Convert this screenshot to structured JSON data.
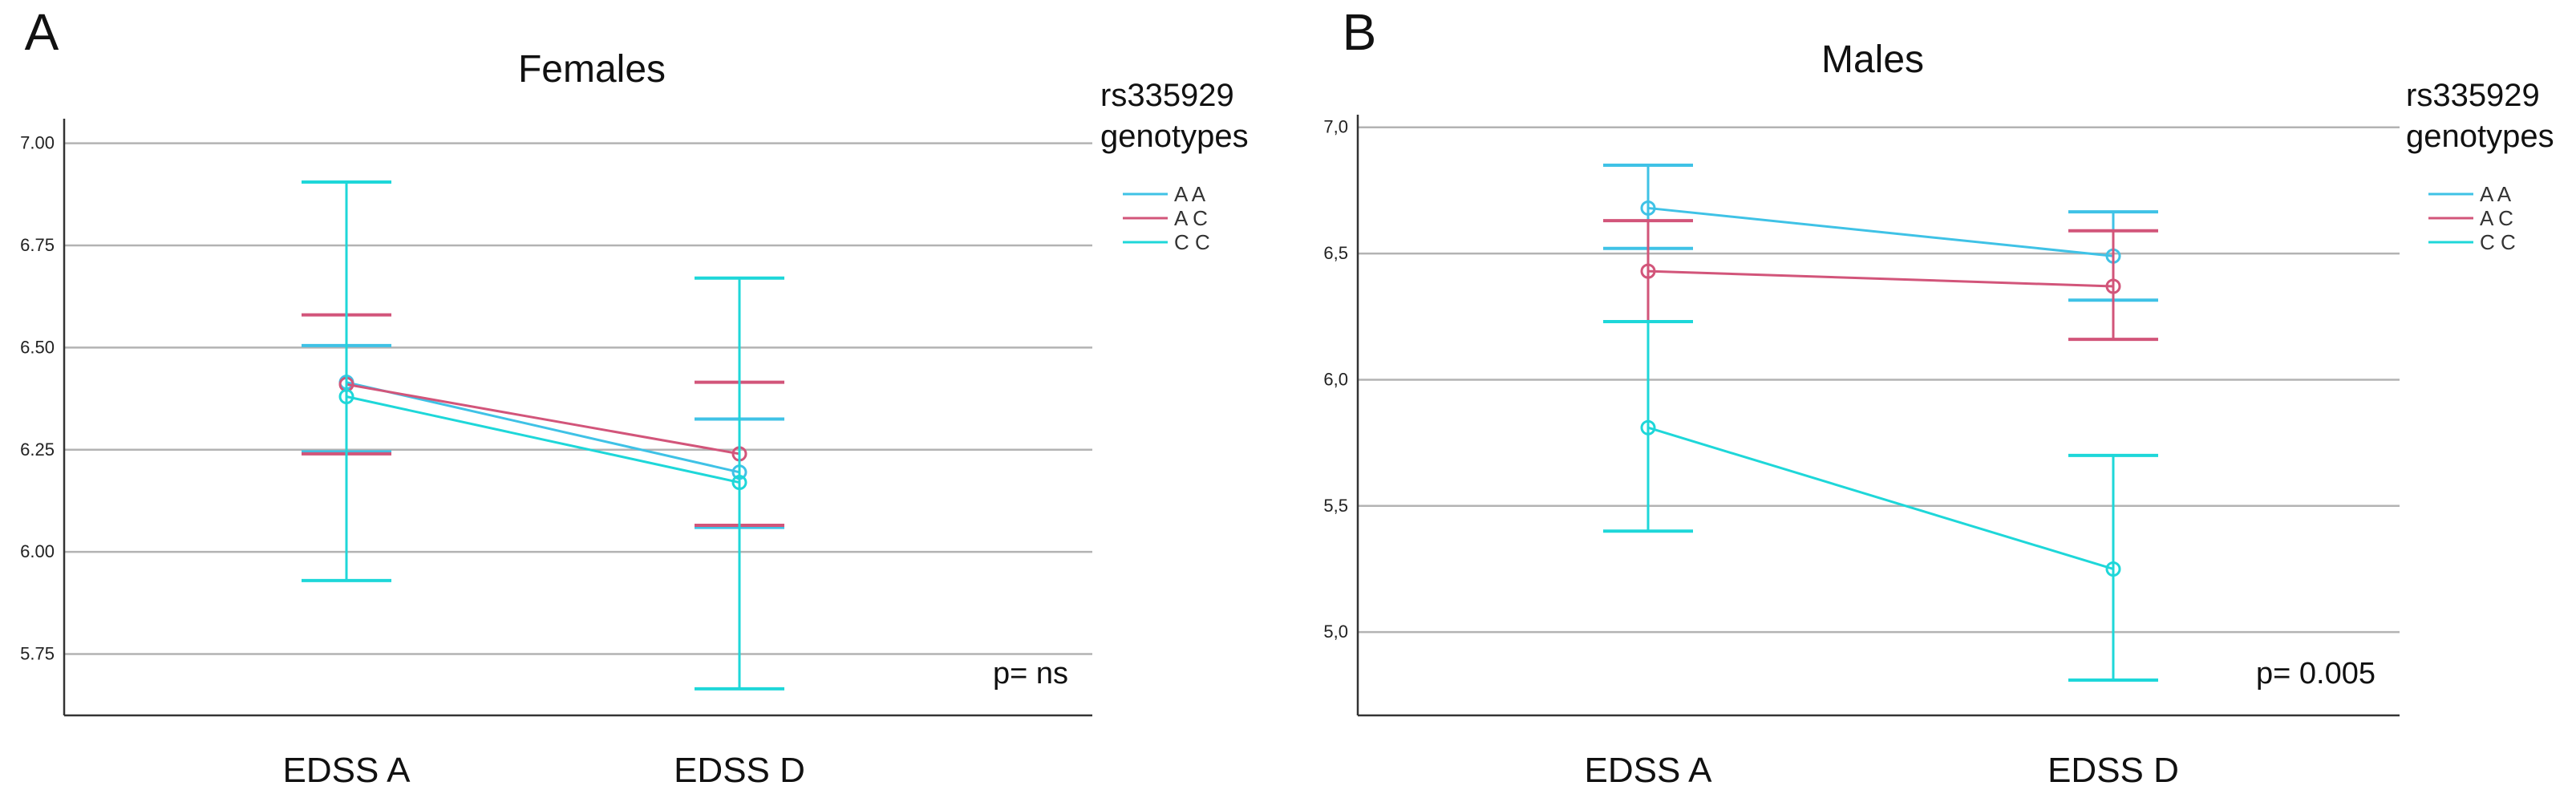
{
  "chart_data": [
    {
      "type": "line",
      "panel_letter": "A",
      "title": "Females",
      "categories": [
        "EDSS A",
        "EDSS D"
      ],
      "xlabel": "",
      "ylabel": "",
      "ylim": [
        5.6,
        7.06
      ],
      "yticks": [
        5.75,
        6.0,
        6.25,
        6.5,
        6.75,
        7.0
      ],
      "ytick_labels": [
        "5.75",
        "6.00",
        "6.25",
        "6.50",
        "6.75",
        "7.00"
      ],
      "grid": true,
      "legend_title": [
        "rs335929",
        "genotypes"
      ],
      "legend_position": "right",
      "annotation": "p= ns",
      "series": [
        {
          "name": "A A",
          "color": "#3fc2e6",
          "values": [
            6.415,
            6.195
          ],
          "err_low": [
            6.245,
            6.06
          ],
          "err_high": [
            6.505,
            6.325
          ]
        },
        {
          "name": "A C",
          "color": "#d2557a",
          "values": [
            6.41,
            6.24
          ],
          "err_low": [
            6.24,
            6.065
          ],
          "err_high": [
            6.58,
            6.415
          ]
        },
        {
          "name": "C C",
          "color": "#1ed7d9",
          "values": [
            6.38,
            6.17
          ],
          "err_low": [
            5.93,
            5.665
          ],
          "err_high": [
            6.905,
            6.67
          ]
        }
      ]
    },
    {
      "type": "line",
      "panel_letter": "B",
      "title": "Males",
      "categories": [
        "EDSS A",
        "EDSS D"
      ],
      "xlabel": "",
      "ylabel": "",
      "ylim": [
        4.67,
        7.05
      ],
      "yticks": [
        5.0,
        5.5,
        6.0,
        6.5,
        7.0
      ],
      "ytick_labels": [
        "5,0",
        "5,5",
        "6,0",
        "6,5",
        "7,0"
      ],
      "grid": true,
      "legend_title": [
        "rs335929",
        "genotypes"
      ],
      "legend_position": "right",
      "annotation": "p= 0.005",
      "series": [
        {
          "name": "A A",
          "color": "#3fc2e6",
          "values": [
            6.68,
            6.49
          ],
          "err_low": [
            6.52,
            6.315
          ],
          "err_high": [
            6.85,
            6.665
          ]
        },
        {
          "name": "A C",
          "color": "#d2557a",
          "values": [
            6.43,
            6.37
          ],
          "err_low": [
            6.23,
            6.16
          ],
          "err_high": [
            6.63,
            6.59
          ]
        },
        {
          "name": "C C",
          "color": "#1ed7d9",
          "values": [
            5.81,
            5.25
          ],
          "err_low": [
            5.4,
            4.81
          ],
          "err_high": [
            6.23,
            5.7
          ]
        }
      ]
    }
  ]
}
